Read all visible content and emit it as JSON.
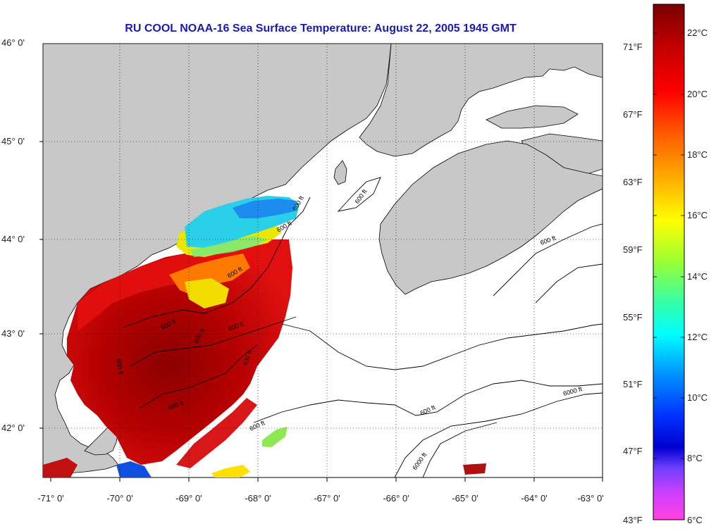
{
  "title": "RU COOL  NOAA-16  Sea Surface Temperature:  August 22, 2005 1945 GMT",
  "lat_labels": [
    "46° 0'",
    "45° 0'",
    "44° 0'",
    "43° 0'",
    "42° 0'"
  ],
  "lon_labels": [
    "-71° 0'",
    "-70° 0'",
    "-69° 0'",
    "-68° 0'",
    "-67° 0'",
    "-66° 0'",
    "-65° 0'",
    "-64° 0'",
    "-63° 0'"
  ],
  "colorbar": {
    "fahrenheit": [
      "71°F",
      "67°F",
      "63°F",
      "59°F",
      "55°F",
      "51°F",
      "47°F",
      "43°F"
    ],
    "celsius": [
      "22°C",
      "20°C",
      "18°C",
      "16°C",
      "14°C",
      "12°C",
      "10°C",
      "8°C",
      "6°C"
    ]
  },
  "contour_labels": [
    "600 ft",
    "600 ft",
    "600 ft",
    "600 ft",
    "600 ft",
    "600 ft",
    "600 ft",
    "600 ft",
    "600 ft",
    "600 ft",
    "6000 ft",
    "6000 ft",
    "600 ft",
    "600 ft",
    "600 ft"
  ],
  "colors": {
    "land": "#c8c8c8",
    "water": "#ffffff",
    "title": "#1a1ab0"
  }
}
